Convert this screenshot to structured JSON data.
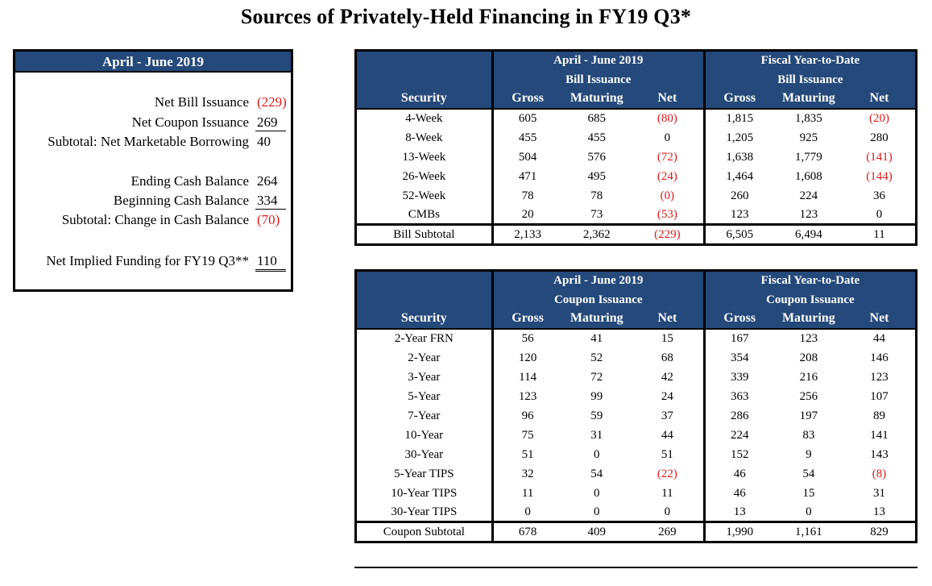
{
  "title": "Sources of Privately-Held Financing in FY19 Q3*",
  "colors": {
    "header_bg": "#24497a",
    "negative": "#e0191b"
  },
  "summary": {
    "header": "April - June 2019",
    "rows": [
      {
        "label": "Net Bill Issuance",
        "value": "(229)",
        "negative": true,
        "rule": ""
      },
      {
        "label": "Net Coupon Issuance",
        "value": "269",
        "negative": false,
        "rule": "ul"
      },
      {
        "label": "Subtotal: Net Marketable Borrowing",
        "value": "40",
        "negative": false,
        "rule": ""
      },
      {
        "label": "Ending Cash Balance",
        "value": "264",
        "negative": false,
        "rule": ""
      },
      {
        "label": "Beginning Cash Balance",
        "value": "334",
        "negative": false,
        "rule": "ul"
      },
      {
        "label": "Subtotal: Change in Cash Balance",
        "value": "(70)",
        "negative": true,
        "rule": ""
      },
      {
        "label": "Net Implied Funding for FY19 Q3**",
        "value": "110",
        "negative": false,
        "rule": "dul"
      }
    ]
  },
  "bills": {
    "group1": "April - June 2019",
    "group1_sub": "Bill Issuance",
    "group2": "Fiscal Year-to-Date",
    "group2_sub": "Bill Issuance",
    "columns": [
      "Security",
      "Gross",
      "Maturing",
      "Net",
      "Gross",
      "Maturing",
      "Net"
    ],
    "rows": [
      [
        "4-Week",
        "605",
        "685",
        "(80)",
        "1,815",
        "1,835",
        "(20)"
      ],
      [
        "8-Week",
        "455",
        "455",
        "0",
        "1,205",
        "925",
        "280"
      ],
      [
        "13-Week",
        "504",
        "576",
        "(72)",
        "1,638",
        "1,779",
        "(141)"
      ],
      [
        "26-Week",
        "471",
        "495",
        "(24)",
        "1,464",
        "1,608",
        "(144)"
      ],
      [
        "52-Week",
        "78",
        "78",
        "(0)",
        "260",
        "224",
        "36"
      ],
      [
        "CMBs",
        "20",
        "73",
        "(53)",
        "123",
        "123",
        "0"
      ]
    ],
    "subtotal": [
      "Bill Subtotal",
      "2,133",
      "2,362",
      "(229)",
      "6,505",
      "6,494",
      "11"
    ]
  },
  "coupons": {
    "group1": "April - June 2019",
    "group1_sub": "Coupon Issuance",
    "group2": "Fiscal Year-to-Date",
    "group2_sub": "Coupon Issuance",
    "columns": [
      "Security",
      "Gross",
      "Maturing",
      "Net",
      "Gross",
      "Maturing",
      "Net"
    ],
    "rows": [
      [
        "2-Year FRN",
        "56",
        "41",
        "15",
        "167",
        "123",
        "44"
      ],
      [
        "2-Year",
        "120",
        "52",
        "68",
        "354",
        "208",
        "146"
      ],
      [
        "3-Year",
        "114",
        "72",
        "42",
        "339",
        "216",
        "123"
      ],
      [
        "5-Year",
        "123",
        "99",
        "24",
        "363",
        "256",
        "107"
      ],
      [
        "7-Year",
        "96",
        "59",
        "37",
        "286",
        "197",
        "89"
      ],
      [
        "10-Year",
        "75",
        "31",
        "44",
        "224",
        "83",
        "141"
      ],
      [
        "30-Year",
        "51",
        "0",
        "51",
        "152",
        "9",
        "143"
      ],
      [
        "5-Year TIPS",
        "32",
        "54",
        "(22)",
        "46",
        "54",
        "(8)"
      ],
      [
        "10-Year TIPS",
        "11",
        "0",
        "11",
        "46",
        "15",
        "31"
      ],
      [
        "30-Year TIPS",
        "0",
        "0",
        "0",
        "13",
        "0",
        "13"
      ]
    ],
    "subtotal": [
      "Coupon Subtotal",
      "678",
      "409",
      "269",
      "1,990",
      "1,161",
      "829"
    ]
  }
}
